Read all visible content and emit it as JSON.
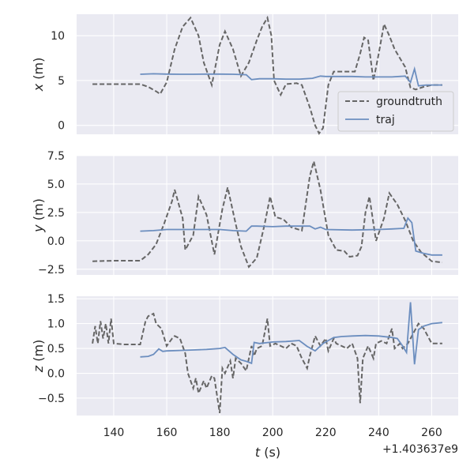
{
  "chart_data": {
    "type": "line",
    "xlabel_var": "t",
    "xlabel_unit": "(s)",
    "x_offset_label": "+1.403637e9",
    "xlim": [
      126,
      270
    ],
    "xticks": [
      140,
      160,
      180,
      200,
      220,
      240,
      260
    ],
    "legend": {
      "placement": "inside-right",
      "entries": [
        "groundtruth",
        "traj"
      ]
    },
    "panels": [
      {
        "ylabel_var": "x",
        "ylabel_unit": "(m)",
        "ylim": [
          -1.0,
          12.4
        ],
        "yticks": [
          0,
          5,
          10
        ],
        "ytick_labels": [
          "0",
          "5",
          "10"
        ],
        "series": [
          {
            "name": "groundtruth",
            "x": [
              132,
              138,
              144,
              150,
              153,
              156,
              157.5,
              160,
              163,
              166,
              169,
              172,
              174,
              177,
              180,
              182,
              185,
              188,
              191,
              194,
              196,
              198,
              199.5,
              200.5,
              203,
              205,
              209,
              211,
              214,
              216,
              217.5,
              219,
              221,
              223,
              228,
              231,
              233,
              234.5,
              236,
              238,
              240,
              242,
              244,
              246,
              248,
              250,
              252,
              254,
              257,
              260,
              264
            ],
            "y": [
              4.6,
              4.6,
              4.6,
              4.6,
              4.3,
              3.8,
              3.5,
              4.8,
              8.5,
              11,
              12,
              10,
              7,
              4.5,
              9,
              10.5,
              8.5,
              5.5,
              7,
              9.5,
              11,
              12,
              10,
              5,
              3.4,
              4.6,
              4.7,
              4.5,
              2,
              0,
              -0.9,
              -0.3,
              4.5,
              6,
              6,
              6,
              8,
              9.8,
              9.5,
              5,
              8,
              11.3,
              10,
              8.5,
              7.5,
              6.5,
              4.2,
              4.0,
              4.3,
              4.5,
              4.5
            ]
          },
          {
            "name": "traj",
            "x": [
              150,
              155,
              160,
              165,
              170,
              175,
              180,
              185,
              190,
              192,
              195,
              200,
              205,
              210,
              215,
              218,
              220,
              225,
              230,
              235,
              240,
              245,
              250,
              252,
              253.5,
              255,
              258,
              261,
              264
            ],
            "y": [
              5.7,
              5.75,
              5.72,
              5.7,
              5.7,
              5.72,
              5.72,
              5.7,
              5.65,
              5.1,
              5.2,
              5.2,
              5.15,
              5.15,
              5.25,
              5.5,
              5.45,
              5.45,
              5.45,
              5.4,
              5.4,
              5.4,
              5.5,
              4.8,
              6.3,
              4.4,
              4.5,
              4.5,
              4.5
            ]
          }
        ]
      },
      {
        "ylabel_var": "y",
        "ylabel_unit": "(m)",
        "ylim": [
          -3.0,
          7.5
        ],
        "yticks": [
          -2.5,
          0,
          2.5,
          5,
          7.5
        ],
        "ytick_labels": [
          "−2.5",
          "0.0",
          "2.5",
          "5.0",
          "7.5"
        ],
        "series": [
          {
            "name": "groundtruth",
            "x": [
              132,
              140,
              147,
              150,
              153,
              156,
              159,
              162,
              163,
              166,
              167,
              170,
              172,
              175,
              178,
              181,
              183,
              186,
              188,
              191,
              194,
              197,
              199,
              201,
              204,
              207,
              211,
              214,
              215.5,
              218,
              221,
              224,
              227,
              229,
              232,
              233.5,
              235,
              236.5,
              239,
              242,
              244,
              247,
              250,
              253,
              256,
              260,
              264
            ],
            "y": [
              -1.8,
              -1.75,
              -1.75,
              -1.75,
              -1.2,
              -0.3,
              1.5,
              3.5,
              4.5,
              2,
              -0.8,
              0.5,
              3.9,
              2.3,
              -1.2,
              2.8,
              4.7,
              1.5,
              -0.5,
              -2.3,
              -1.5,
              1.5,
              3.9,
              2.1,
              1.9,
              1.2,
              0.9,
              5.7,
              7.0,
              4.5,
              0.5,
              -0.8,
              -0.9,
              -1.4,
              -1.3,
              -0.5,
              2.5,
              3.9,
              0,
              2,
              4.2,
              3.2,
              1.8,
              0,
              -1,
              -1.8,
              -1.9
            ]
          },
          {
            "name": "traj",
            "x": [
              150,
              155,
              160,
              165,
              170,
              175,
              180,
              185,
              190,
              192,
              194,
              200,
              205,
              210,
              214,
              216,
              218,
              220,
              230,
              240,
              245,
              249.5,
              251,
              252.5,
              254,
              257,
              260,
              264
            ],
            "y": [
              0.85,
              0.9,
              1.0,
              1.0,
              1.0,
              1.0,
              1.0,
              0.9,
              0.85,
              1.3,
              1.3,
              1.25,
              1.3,
              1.3,
              1.3,
              1.05,
              1.2,
              1.0,
              0.95,
              1.0,
              1.05,
              1.1,
              2.0,
              1.6,
              -0.9,
              -1.1,
              -1.25,
              -1.25
            ]
          }
        ]
      },
      {
        "ylabel_var": "z",
        "ylabel_unit": "(m)",
        "ylim": [
          -0.85,
          1.55
        ],
        "yticks": [
          -0.5,
          0,
          0.5,
          1.0,
          1.5
        ],
        "ytick_labels": [
          "−0.5",
          "0.0",
          "0.5",
          "1.0",
          "1.5"
        ],
        "series": [
          {
            "name": "groundtruth",
            "x": [
              132,
              133,
              134,
              135,
              136,
              137,
              138,
              139,
              140,
              144,
              148,
              150,
              152,
              153,
              155,
              156,
              158,
              160,
              162,
              163,
              165,
              167,
              168,
              170,
              171,
              172,
              174,
              175,
              177,
              178,
              180,
              181,
              182,
              184,
              185,
              186,
              188,
              190,
              192,
              193,
              194,
              196,
              198,
              199,
              201,
              203,
              205,
              207,
              209,
              211,
              213,
              214,
              216,
              218,
              220,
              221,
              223,
              224,
              226,
              228,
              230,
              232,
              233,
              234,
              236,
              238,
              239,
              241,
              243,
              245,
              246,
              248,
              249,
              251,
              253,
              255,
              257,
              260,
              264
            ],
            "y": [
              0.6,
              0.95,
              0.6,
              1.05,
              0.7,
              1.0,
              0.6,
              1.1,
              0.6,
              0.58,
              0.58,
              0.58,
              1.05,
              1.15,
              1.2,
              1.0,
              0.9,
              0.55,
              0.7,
              0.75,
              0.7,
              0.4,
              0.0,
              -0.3,
              -0.1,
              -0.4,
              -0.15,
              -0.3,
              -0.05,
              -0.1,
              -0.8,
              0.1,
              0.0,
              0.25,
              -0.1,
              0.3,
              0.2,
              0.05,
              0.55,
              0.35,
              0.5,
              0.55,
              1.1,
              0.55,
              0.6,
              0.55,
              0.5,
              0.6,
              0.55,
              0.3,
              0.1,
              0.35,
              0.75,
              0.55,
              0.7,
              0.45,
              0.7,
              0.6,
              0.55,
              0.5,
              0.6,
              0.3,
              -0.6,
              0.3,
              0.55,
              0.3,
              0.6,
              0.65,
              0.6,
              0.9,
              0.5,
              0.6,
              0.5,
              0.6,
              0.8,
              1.0,
              0.9,
              0.6,
              0.6
            ]
          },
          {
            "name": "traj",
            "x": [
              150,
              153,
              155,
              157,
              158.5,
              160,
              165,
              170,
              175,
              180,
              182,
              185,
              188,
              190,
              192,
              193,
              195,
              200,
              205,
              210,
              213,
              216,
              219,
              223,
              226,
              230,
              235,
              240,
              245,
              247,
              249,
              250.5,
              252,
              253.5,
              255,
              257,
              260,
              264
            ],
            "y": [
              0.33,
              0.34,
              0.38,
              0.49,
              0.44,
              0.45,
              0.46,
              0.47,
              0.48,
              0.5,
              0.52,
              0.38,
              0.27,
              0.24,
              0.2,
              0.62,
              0.6,
              0.63,
              0.64,
              0.66,
              0.54,
              0.45,
              0.6,
              0.72,
              0.74,
              0.75,
              0.76,
              0.75,
              0.72,
              0.7,
              0.55,
              0.42,
              1.43,
              0.18,
              0.88,
              0.95,
              1.0,
              1.02
            ]
          }
        ]
      }
    ]
  }
}
